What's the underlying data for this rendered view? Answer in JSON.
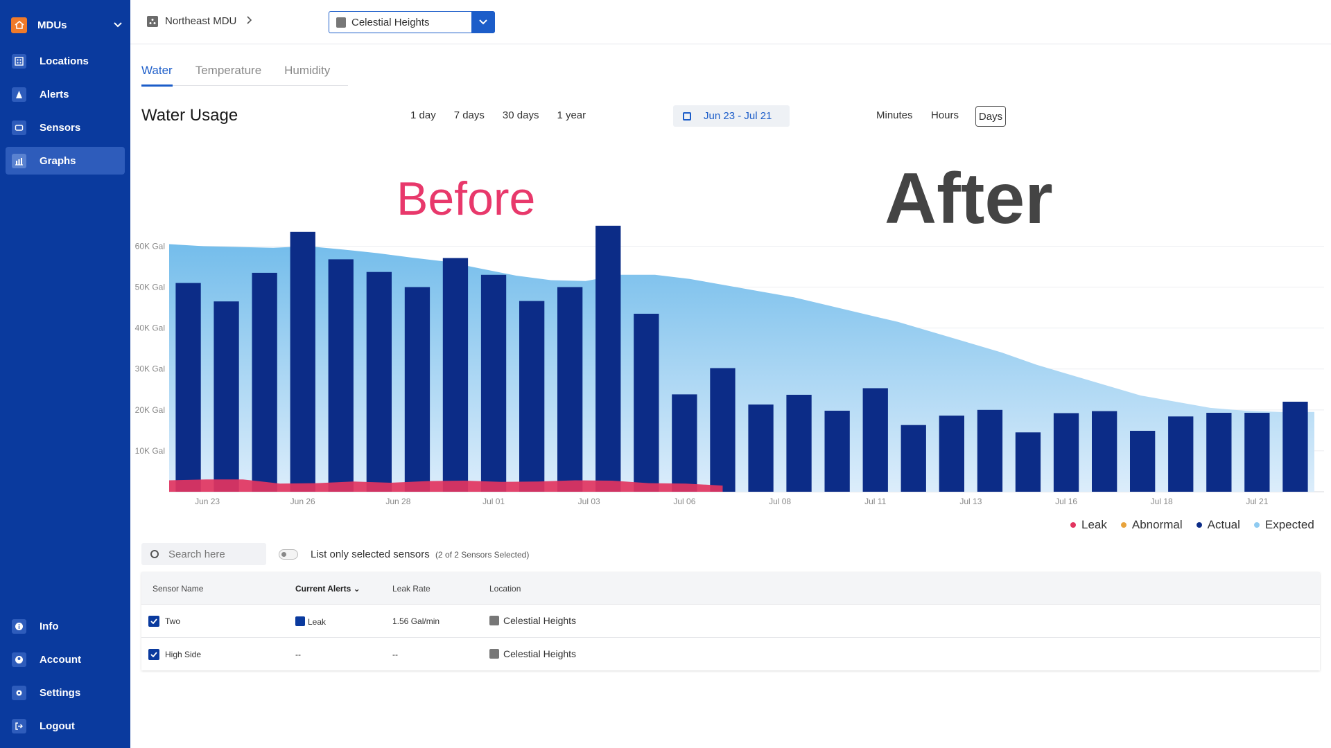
{
  "sidebar": {
    "brand": "MDUs",
    "top_items": [
      {
        "label": "Locations",
        "icon": "building-icon"
      },
      {
        "label": "Alerts",
        "icon": "alert-icon"
      },
      {
        "label": "Sensors",
        "icon": "sensor-icon"
      },
      {
        "label": "Graphs",
        "icon": "graph-icon",
        "active": true
      }
    ],
    "bottom_items": [
      {
        "label": "Info",
        "icon": "info-icon"
      },
      {
        "label": "Account",
        "icon": "account-icon"
      },
      {
        "label": "Settings",
        "icon": "gear-icon"
      },
      {
        "label": "Logout",
        "icon": "logout-icon"
      }
    ]
  },
  "header": {
    "breadcrumb": "Northeast MDU",
    "property_select": "Celestial Heights"
  },
  "tabs": [
    "Water",
    "Temperature",
    "Humidity"
  ],
  "panel": {
    "title": "Water Usage",
    "ranges": [
      "1 day",
      "7 days",
      "30 days",
      "1 year"
    ],
    "date_range": "Jun 23 - Jul 21",
    "granularity": [
      "Minutes",
      "Hours",
      "Days"
    ],
    "selected_granularity": "Days"
  },
  "overlay": {
    "before": "Before",
    "after": "After"
  },
  "colors": {
    "actual": "#0c2c87",
    "expected": "#7cc0ec",
    "leak": "#e2345f",
    "abnormal": "#e8a33c",
    "sidebar": "#0a3a9e",
    "accent": "#1c5dc9"
  },
  "chart_data": {
    "type": "bar",
    "y_tick_labels": [
      "10K Gal",
      "20K Gal",
      "30K Gal",
      "40K Gal",
      "50K Gal",
      "60K Gal"
    ],
    "y_ticks": [
      10000,
      20000,
      30000,
      40000,
      50000,
      60000
    ],
    "ylim": [
      0,
      66000
    ],
    "x_tick_labels": [
      "Jun 23",
      "Jun 26",
      "Jun 28",
      "Jul 01",
      "Jul 03",
      "Jul 06",
      "Jul 08",
      "Jul 11",
      "Jul 13",
      "Jul 16",
      "Jul 18",
      "Jul 21"
    ],
    "x_tick_index": [
      1,
      3.5,
      6,
      8.5,
      11,
      13.5,
      16,
      18.5,
      21,
      23.5,
      26,
      28.5
    ],
    "series": [
      {
        "name": "Actual",
        "type": "bar",
        "values": [
          51000,
          46500,
          53500,
          63500,
          56800,
          53700,
          50000,
          57100,
          53000,
          46600,
          50000,
          65000,
          43500,
          23800,
          30200,
          21300,
          23700,
          19800,
          25300,
          16300,
          18600,
          20000,
          14500,
          19200,
          19700,
          14900,
          18400,
          19300,
          19300,
          22000
        ]
      },
      {
        "name": "Expected",
        "type": "area",
        "values": [
          60500,
          60000,
          59800,
          59600,
          60000,
          59200,
          58300,
          57200,
          56200,
          54500,
          52800,
          51700,
          51500,
          53000,
          53000,
          52000,
          50500,
          49000,
          47500,
          45500,
          43500,
          41500,
          39000,
          36500,
          34000,
          31000,
          28500,
          26000,
          23500,
          22000,
          20500,
          19800,
          19500,
          19500
        ]
      },
      {
        "name": "Leak",
        "type": "area",
        "values": [
          2800,
          3000,
          3000,
          2000,
          2100,
          2500,
          2200,
          2600,
          2700,
          2400,
          2500,
          2800,
          2700,
          2100,
          2000,
          1500
        ]
      },
      {
        "name": "Abnormal",
        "type": "area",
        "values": []
      }
    ],
    "legend": [
      "Leak",
      "Abnormal",
      "Actual",
      "Expected"
    ],
    "legend_position": "bottom-right",
    "grid": true
  },
  "table": {
    "search_placeholder": "Search here",
    "toggle_label": "List only selected sensors",
    "toggle_sub": "(2 of 2 Sensors Selected)",
    "columns": [
      "Sensor Name",
      "Current Alerts",
      "Leak Rate",
      "Location"
    ],
    "sort_indicator": "⌄",
    "rows": [
      {
        "name": "Two",
        "alert": "Leak",
        "leak_rate": "1.56 Gal/min",
        "location": "Celestial Heights"
      },
      {
        "name": "High Side",
        "alert": "--",
        "leak_rate": "--",
        "location": "Celestial Heights"
      }
    ]
  }
}
